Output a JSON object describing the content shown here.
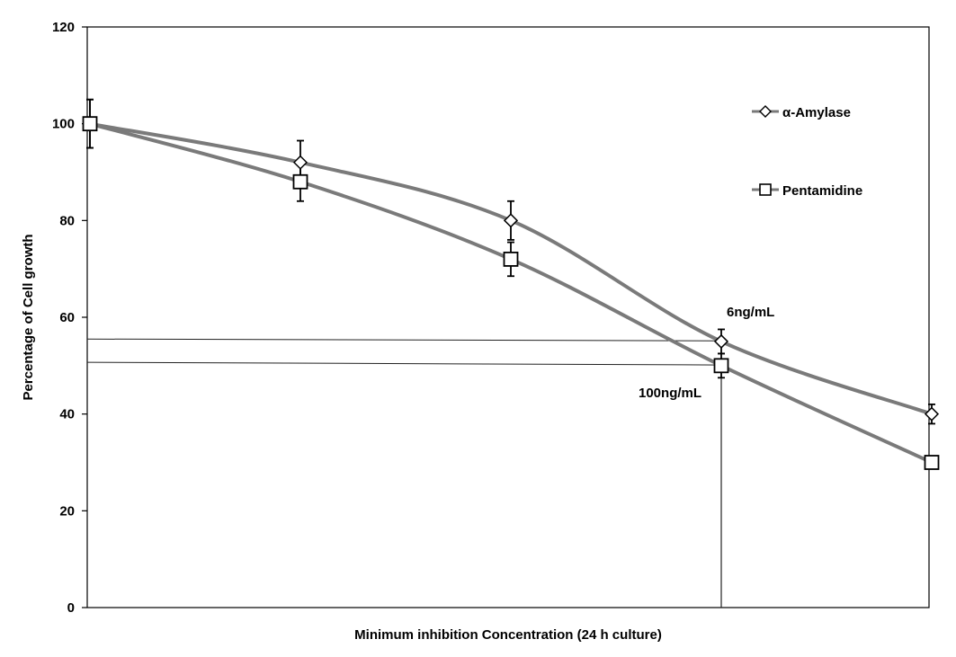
{
  "chart_data": {
    "type": "line",
    "title": "",
    "xlabel": "Minimum inhibition Concentration (24 h culture)",
    "ylabel": "Percentage of Cell growth",
    "ylim": [
      0,
      120
    ],
    "yticks": [
      0,
      20,
      40,
      60,
      80,
      100,
      120
    ],
    "grid": false,
    "legend_position": "top-right",
    "x": [
      1,
      2,
      3,
      4,
      5
    ],
    "series": [
      {
        "name": "α-Amylase",
        "marker": "diamond",
        "values": [
          100,
          92,
          80,
          55,
          40
        ],
        "error": [
          5,
          4.5,
          4,
          2.5,
          2
        ]
      },
      {
        "name": "Pentamidine",
        "marker": "square",
        "values": [
          100,
          88,
          72,
          50,
          30
        ],
        "error": [
          5,
          4,
          3.5,
          2.5,
          0
        ]
      }
    ],
    "annotations": [
      {
        "text": "6ng/mL",
        "y": 55
      },
      {
        "text": "100ng/mL",
        "y": 50
      }
    ],
    "reference_lines": {
      "horizontal_y": [
        55.5,
        50.7
      ],
      "vertical_x": 4
    },
    "colors": {
      "series_line": "#7a7a7a",
      "axis": "#000000",
      "marker_fill": "#ffffff"
    }
  }
}
